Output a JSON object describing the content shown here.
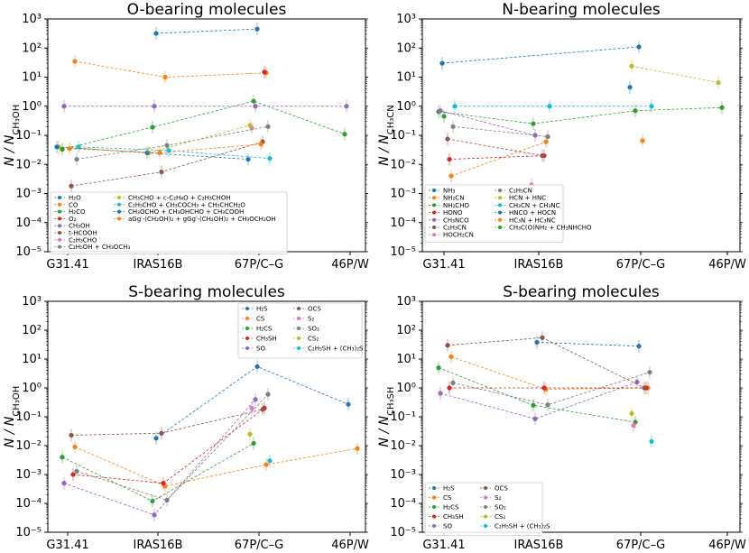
{
  "categories": [
    "G31.41",
    "IRAS16B",
    "67P/C–G",
    "46P/W"
  ],
  "y_ticks": [
    "10⁻⁵",
    "10⁻⁴",
    "10⁻³",
    "10⁻²",
    "10⁻¹",
    "10⁰",
    "10¹",
    "10²",
    "10³"
  ],
  "chart_data": [
    {
      "type": "line",
      "panel": "top-left",
      "title": "O-bearing molecules",
      "ylabel_main": "N / N",
      "ylabel_sub": "CH₃OH",
      "yscale": "log",
      "ylim": [
        1e-05,
        1000
      ],
      "categories": [
        "G31.41",
        "IRAS16B",
        "67P/C–G",
        "46P/W"
      ],
      "legend_position": "lower-left",
      "series": [
        {
          "name": "H₂O",
          "color": "#1f77b4",
          "values": [
            null,
            320,
            450,
            null
          ]
        },
        {
          "name": "CO",
          "color": "#ff7f0e",
          "values": [
            35,
            10,
            14,
            null
          ]
        },
        {
          "name": "H₂CO",
          "color": "#2ca02c",
          "values": [
            0.033,
            0.19,
            1.5,
            0.11
          ]
        },
        {
          "name": "O₂",
          "color": "#d62728",
          "values": [
            null,
            null,
            15,
            null
          ]
        },
        {
          "name": "CH₃OH",
          "color": "#9467bd",
          "values": [
            1,
            1,
            1,
            1
          ]
        },
        {
          "name": "t-HCOOH",
          "color": "#8c564b",
          "values": [
            0.0018,
            0.0055,
            0.06,
            null
          ]
        },
        {
          "name": "C₂H₃CHO",
          "color": "#e377c2",
          "values": [
            null,
            null,
            0.18,
            null
          ]
        },
        {
          "name": "C₂H₅OH + CH₃OCH₃",
          "color": "#7f7f7f",
          "values": [
            0.015,
            0.045,
            0.2,
            null
          ]
        },
        {
          "name": "CH₃CHO + c-C₂H₄O + C₂H₃CHOH",
          "color": "#bcbd22",
          "values": [
            0.04,
            0.025,
            0.22,
            null
          ]
        },
        {
          "name": "C₂H₅CHO + CH₃COCH₃ + CH₃CHCH₂O",
          "color": "#17becf",
          "values": [
            0.04,
            0.03,
            0.016,
            null
          ]
        },
        {
          "name": "CH₃OCHO + CH₃OHCHO + CH₃COOH",
          "color": "#1f77b4",
          "values": [
            0.04,
            0.025,
            0.015,
            null
          ]
        },
        {
          "name": "aGg′-(CH₂OH)₂ + gGg′-(CH₂OH)₂ + CH₃OCH₂OH",
          "color": "#ff7f0e",
          "values": [
            0.035,
            0.025,
            0.05,
            null
          ]
        }
      ]
    },
    {
      "type": "line",
      "panel": "top-right",
      "title": "N-bearing molecules",
      "ylabel_main": "N / N",
      "ylabel_sub": "CH₃CN",
      "yscale": "log",
      "ylim": [
        1e-05,
        1000
      ],
      "categories": [
        "G31.41",
        "IRAS16B",
        "67P/C–G",
        "46P/W"
      ],
      "legend_position": "lower-left",
      "series": [
        {
          "name": "NH₃",
          "color": "#1f77b4",
          "values": [
            30,
            null,
            110,
            null
          ]
        },
        {
          "name": "NH₂CN",
          "color": "#ff7f0e",
          "values": [
            0.004,
            0.06,
            null,
            null
          ]
        },
        {
          "name": "NH₂CHO",
          "color": "#2ca02c",
          "values": [
            0.65,
            0.25,
            0.7,
            0.9
          ]
        },
        {
          "name": "HONO",
          "color": "#d62728",
          "values": [
            0.015,
            0.02,
            null,
            null
          ]
        },
        {
          "name": "CH₃NCO",
          "color": "#9467bd",
          "values": [
            0.7,
            0.1,
            null,
            null
          ]
        },
        {
          "name": "C₂H₃CN",
          "color": "#8c564b",
          "values": [
            0.075,
            0.02,
            null,
            null
          ]
        },
        {
          "name": "HOCH₂CN",
          "color": "#e377c2",
          "values": [
            null,
            0.002,
            null,
            null
          ]
        },
        {
          "name": "C₂H₅CN",
          "color": "#7f7f7f",
          "values": [
            0.2,
            0.09,
            null,
            null
          ]
        },
        {
          "name": "HCN + HNC",
          "color": "#bcbd22",
          "values": [
            null,
            null,
            24,
            6.5
          ]
        },
        {
          "name": "CH₃CN + CH₃NC",
          "color": "#17becf",
          "values": [
            1,
            1,
            1,
            null
          ]
        },
        {
          "name": "HNCO + HOCN",
          "color": "#1f77b4",
          "values": [
            null,
            null,
            4.5,
            null
          ]
        },
        {
          "name": "HC₃N + HC₃NC",
          "color": "#ff7f0e",
          "values": [
            null,
            null,
            0.065,
            null
          ]
        },
        {
          "name": "CH₃C(O)NH₂ + CH₃NHCHO",
          "color": "#2ca02c",
          "values": [
            0.45,
            null,
            null,
            null
          ]
        }
      ]
    },
    {
      "type": "line",
      "panel": "bottom-left",
      "title": "S-bearing molecules",
      "ylabel_main": "N / N",
      "ylabel_sub": "CH₃OH",
      "yscale": "log",
      "ylim": [
        1e-05,
        1000
      ],
      "categories": [
        "G31.41",
        "IRAS16B",
        "67P/C–G",
        "46P/W"
      ],
      "legend_position": "upper-right",
      "series": [
        {
          "name": "H₂S",
          "color": "#1f77b4",
          "values": [
            null,
            0.018,
            5.5,
            0.27
          ]
        },
        {
          "name": "CS",
          "color": "#ff7f0e",
          "values": [
            0.009,
            0.0004,
            0.0022,
            0.008
          ]
        },
        {
          "name": "H₂CS",
          "color": "#2ca02c",
          "values": [
            0.004,
            0.00012,
            0.012,
            null
          ]
        },
        {
          "name": "CH₃SH",
          "color": "#d62728",
          "values": [
            0.001,
            0.0005,
            0.2,
            null
          ]
        },
        {
          "name": "SO",
          "color": "#9467bd",
          "values": [
            0.0005,
            4e-05,
            0.4,
            null
          ]
        },
        {
          "name": "OCS",
          "color": "#8c564b",
          "values": [
            0.023,
            0.027,
            0.18,
            null
          ]
        },
        {
          "name": "S₂",
          "color": "#e377c2",
          "values": [
            null,
            null,
            0.2,
            null
          ]
        },
        {
          "name": "SO₂",
          "color": "#7f7f7f",
          "values": [
            0.0013,
            0.00013,
            0.6,
            null
          ]
        },
        {
          "name": "CS₂",
          "color": "#bcbd22",
          "values": [
            null,
            null,
            0.025,
            null
          ]
        },
        {
          "name": "C₂H₅SH + (CH₃)₂S",
          "color": "#17becf",
          "values": [
            null,
            null,
            0.003,
            null
          ]
        }
      ]
    },
    {
      "type": "line",
      "panel": "bottom-right",
      "title": "S-bearing molecules",
      "ylabel_main": "N / N",
      "ylabel_sub": "CH₃SH",
      "yscale": "log",
      "ylim": [
        1e-05,
        1000
      ],
      "categories": [
        "G31.41",
        "IRAS16B",
        "67P/C–G",
        "46P/W"
      ],
      "legend_position": "lower-left",
      "series": [
        {
          "name": "H₂S",
          "color": "#1f77b4",
          "values": [
            null,
            38,
            28,
            null
          ]
        },
        {
          "name": "CS",
          "color": "#ff7f0e",
          "values": [
            12,
            0.9,
            1,
            null
          ]
        },
        {
          "name": "H₂CS",
          "color": "#2ca02c",
          "values": [
            5,
            0.25,
            0.065,
            null
          ]
        },
        {
          "name": "CH₃SH",
          "color": "#d62728",
          "values": [
            1,
            1,
            1,
            null
          ]
        },
        {
          "name": "SO",
          "color": "#9467bd",
          "values": [
            0.65,
            0.085,
            1.6,
            null
          ]
        },
        {
          "name": "OCS",
          "color": "#8c564b",
          "values": [
            30,
            55,
            1,
            null
          ]
        },
        {
          "name": "S₂",
          "color": "#e377c2",
          "values": [
            null,
            null,
            0.05,
            null
          ]
        },
        {
          "name": "SO₂",
          "color": "#7f7f7f",
          "values": [
            1.5,
            0.26,
            3.5,
            null
          ]
        },
        {
          "name": "CS₂",
          "color": "#bcbd22",
          "values": [
            null,
            null,
            0.13,
            null
          ]
        },
        {
          "name": "C₂H₅SH + (CH₃)₂S",
          "color": "#17becf",
          "values": [
            null,
            null,
            0.014,
            null
          ]
        }
      ]
    }
  ]
}
